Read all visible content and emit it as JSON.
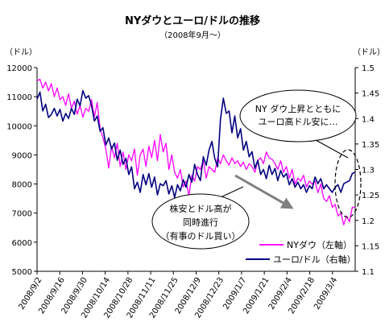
{
  "chart_data": {
    "type": "line",
    "title": "NYダウとユーロ/ドルの推移",
    "subtitle": "（2008年9月～）",
    "left_unit": "（ドル）",
    "right_unit": "（ドル）",
    "y_left": {
      "min": 5000,
      "max": 12000,
      "ticks": [
        "5000",
        "6000",
        "7000",
        "8000",
        "9000",
        "10000",
        "11000",
        "12000"
      ]
    },
    "y_right": {
      "min": 1.1,
      "max": 1.5,
      "ticks": [
        "1.1",
        "1.15",
        "1.2",
        "1.25",
        "1.3",
        "1.35",
        "1.4",
        "1.45",
        "1.5"
      ]
    },
    "x_ticks": [
      "2008/9/2",
      "2008/9/16",
      "2008/9/30",
      "2008/10/14",
      "2008/10/28",
      "2008/11/11",
      "2008/11/25",
      "2008/12/9",
      "2008/12/23",
      "2009/1/7",
      "2009/1/21",
      "2009/2/4",
      "2009/2/18",
      "2009/3/4"
    ],
    "grid": false,
    "legend_position": "bottom-right",
    "series": [
      {
        "name": "NYダウ（左軸）",
        "axis": "left",
        "color": "#ff00ff",
        "values": [
          11550,
          11600,
          11300,
          11500,
          11200,
          11450,
          11000,
          11300,
          10900,
          11000,
          10700,
          11100,
          10600,
          10850,
          10400,
          10700,
          10300,
          10600,
          10500,
          10900,
          10300,
          10800,
          9900,
          9600,
          9200,
          8550,
          9300,
          8900,
          9400,
          8600,
          9100,
          8500,
          9000,
          8800,
          9200,
          8300,
          9000,
          9200,
          8600,
          9300,
          8900,
          9500,
          8800,
          9700,
          9100,
          9400,
          8500,
          9000,
          8400,
          8200,
          8500,
          7900,
          8100,
          7600,
          8300,
          8100,
          8600,
          8500,
          8800,
          8200,
          8600,
          8500,
          8400,
          8900,
          8700,
          9000,
          8800,
          8650,
          8900,
          8700,
          8800,
          8600,
          8750,
          8500,
          8700,
          8600,
          8400,
          8800,
          8900,
          8700,
          9100,
          8900,
          8850,
          8700,
          8500,
          8800,
          8400,
          8600,
          8200,
          8500,
          8000,
          8200,
          8100,
          8300,
          7900,
          8100,
          8000,
          8100,
          7700,
          8000,
          7500,
          7400,
          7600,
          7200,
          7300,
          6900,
          7000,
          6600,
          6900,
          6700,
          7200,
          7200
        ]
      },
      {
        "name": "ユーロ/ドル（右軸）",
        "axis": "right",
        "color": "#000080",
        "values": [
          1.438,
          1.452,
          1.415,
          1.428,
          1.402,
          1.408,
          1.42,
          1.405,
          1.418,
          1.395,
          1.41,
          1.4,
          1.42,
          1.408,
          1.438,
          1.425,
          1.455,
          1.44,
          1.445,
          1.426,
          1.395,
          1.405,
          1.375,
          1.382,
          1.348,
          1.362,
          1.34,
          1.352,
          1.318,
          1.338,
          1.31,
          1.322,
          1.29,
          1.305,
          1.262,
          1.275,
          1.255,
          1.29,
          1.27,
          1.292,
          1.265,
          1.285,
          1.25,
          1.272,
          1.268,
          1.278,
          1.252,
          1.268,
          1.245,
          1.27,
          1.258,
          1.28,
          1.265,
          1.29,
          1.275,
          1.31,
          1.29,
          1.278,
          1.325,
          1.308,
          1.338,
          1.355,
          1.322,
          1.305,
          1.398,
          1.44,
          1.41,
          1.415,
          1.372,
          1.405,
          1.362,
          1.38,
          1.338,
          1.355,
          1.325,
          1.335,
          1.302,
          1.318,
          1.29,
          1.3,
          1.282,
          1.308,
          1.29,
          1.302,
          1.278,
          1.298,
          1.285,
          1.292,
          1.27,
          1.282,
          1.265,
          1.275,
          1.262,
          1.27,
          1.255,
          1.268,
          1.262,
          1.285,
          1.272,
          1.282,
          1.262,
          1.27,
          1.262,
          1.255,
          1.265,
          1.27,
          1.255,
          1.272,
          1.275,
          1.278,
          1.292,
          1.295
        ]
      }
    ],
    "annotations": {
      "upper_callout": [
        "NY ダウ上昇とともに",
        "ユーロ高ドル安に…"
      ],
      "lower_callout": [
        "株安とドル高が",
        "同時進行",
        "（有事のドル買い）"
      ]
    }
  }
}
